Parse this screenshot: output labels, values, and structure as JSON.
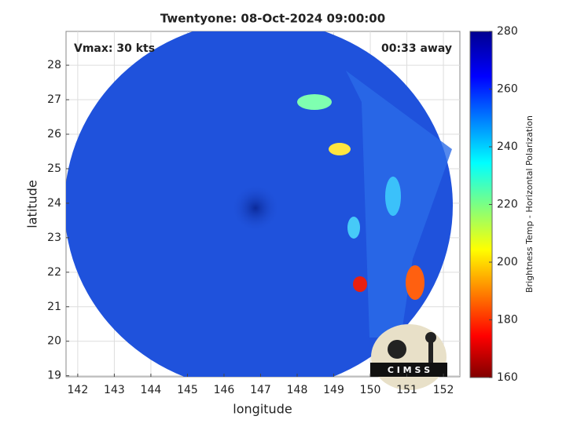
{
  "chart_data": {
    "type": "image",
    "title": "Twentyone: 08-Oct-2024 09:00:00",
    "annotations": [
      "Vmax: 30 kts",
      "00:33 away"
    ],
    "xlabel": "longitude",
    "ylabel": "latitude",
    "xlim": [
      141.68,
      152.45
    ],
    "xticks": [
      142,
      143,
      144,
      145,
      146,
      147,
      148,
      149,
      150,
      151,
      152
    ],
    "ylim": [
      18.97,
      28.98
    ],
    "yticks": [
      19,
      20,
      21,
      22,
      23,
      24,
      25,
      26,
      27,
      28
    ],
    "grid": true,
    "colorbar": {
      "label": "Brightness Temp - Horizontal Polarization",
      "clim": [
        160,
        280
      ],
      "ticks": [
        160,
        180,
        200,
        220,
        240,
        260,
        280
      ]
    },
    "logo_text": "C I M S S"
  }
}
